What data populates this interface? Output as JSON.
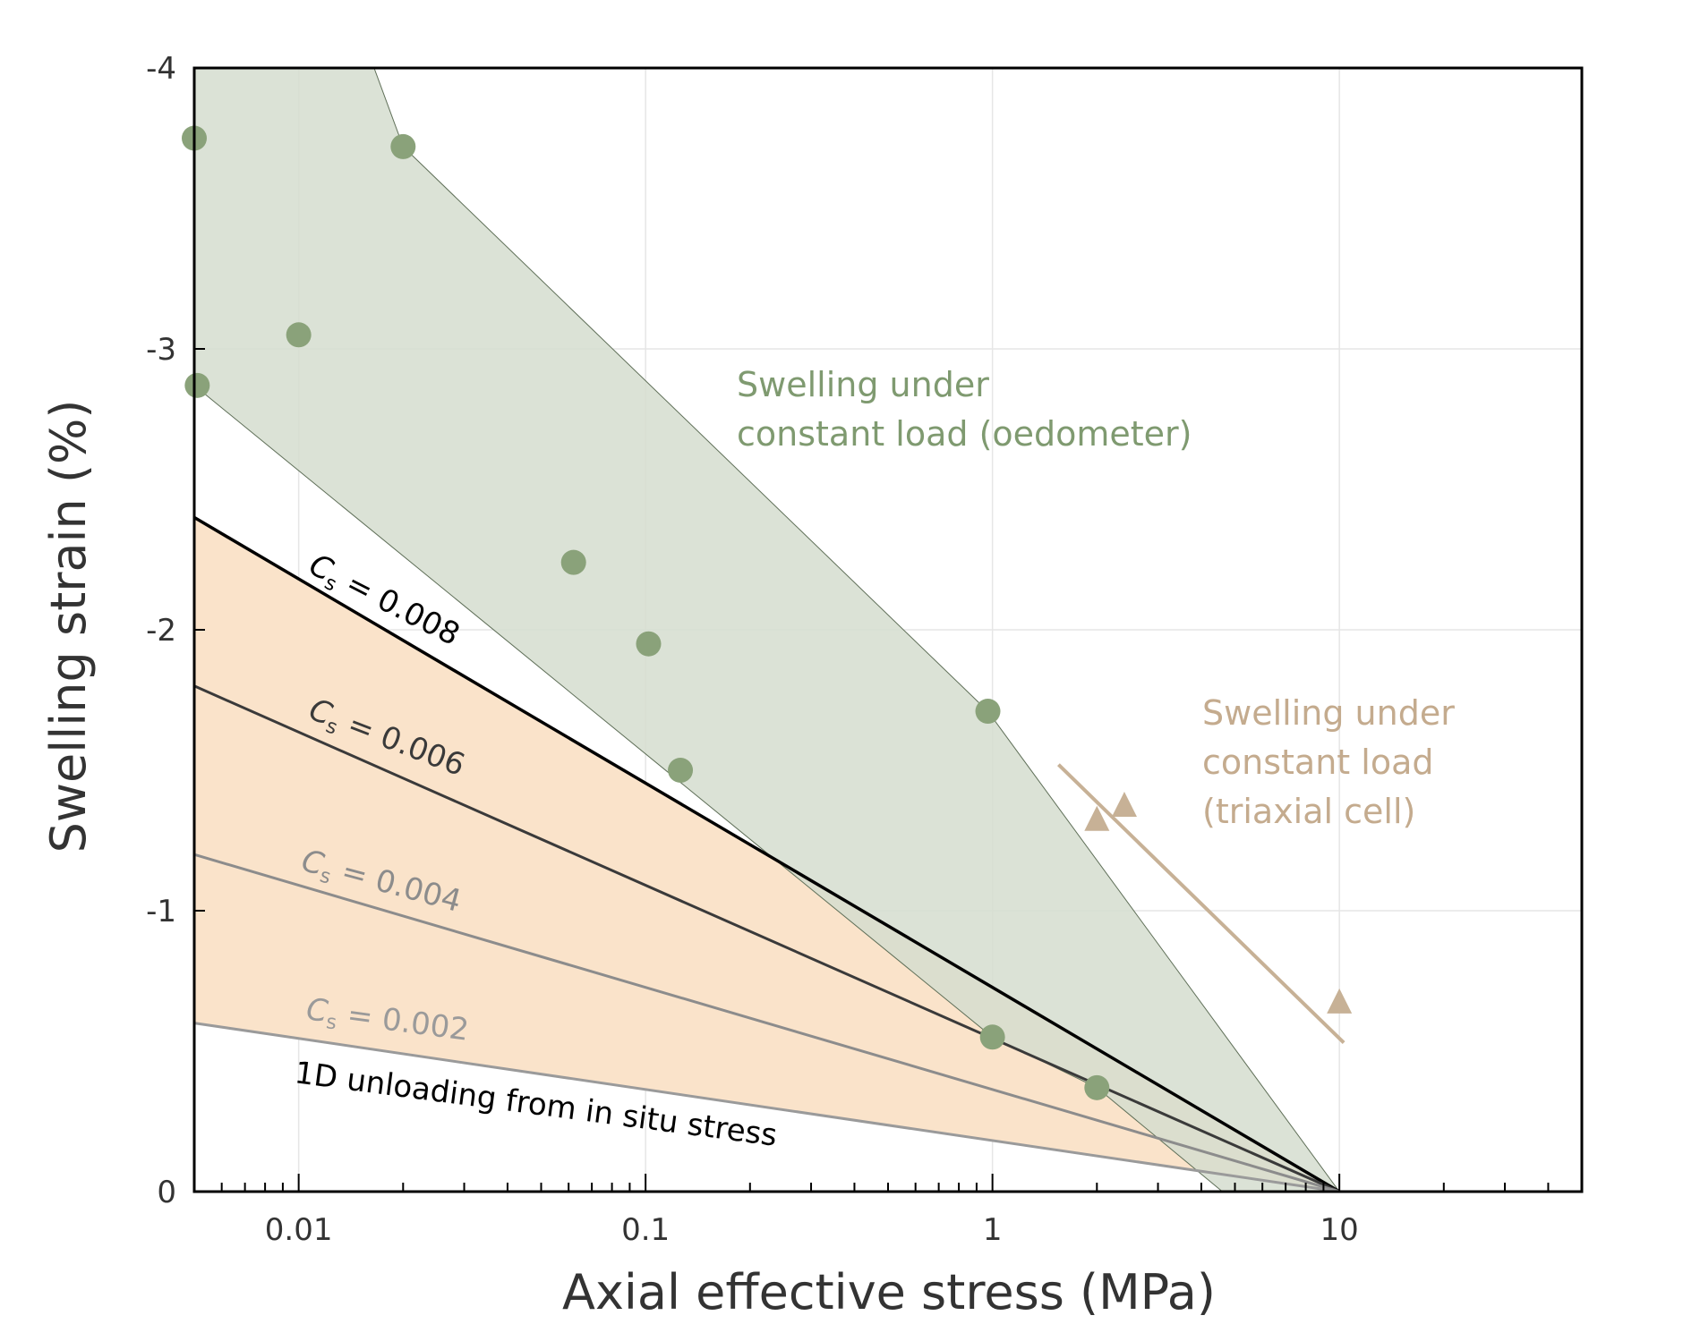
{
  "chart_data": {
    "type": "scatter",
    "title": "",
    "xlabel": "Axial effective stress (MPa)",
    "ylabel": "Swelling strain (%)",
    "xscale": "log",
    "xlim": [
      0.005,
      50
    ],
    "ylim": [
      0,
      -4
    ],
    "xticks": [
      {
        "value": 0.01,
        "label": "0.01"
      },
      {
        "value": 0.1,
        "label": "0.1"
      },
      {
        "value": 1,
        "label": "1"
      },
      {
        "value": 10,
        "label": "10"
      }
    ],
    "yticks": [
      {
        "value": 0,
        "label": "0"
      },
      {
        "value": -1,
        "label": "-1"
      },
      {
        "value": -2,
        "label": "-2"
      },
      {
        "value": -3,
        "label": "-3"
      },
      {
        "value": -4,
        "label": "-4"
      }
    ],
    "grid": true,
    "colors": {
      "oedometer": "#8aa27a",
      "oedometer_fill": "#d5ddcf",
      "triaxial": "#c7b196",
      "cs_band_fill": "#fae3ca",
      "cs_0008": "#000000",
      "cs_0006": "#3a3a3a",
      "cs_0004": "#8c8c8c",
      "cs_0002": "#9a9a9a"
    },
    "series": [
      {
        "name": "Swelling under constant load (oedometer)",
        "kind": "points",
        "marker": "circle",
        "points": [
          {
            "x": 0.005,
            "y": -3.75
          },
          {
            "x": 0.0051,
            "y": -2.87
          },
          {
            "x": 0.01,
            "y": -3.05
          },
          {
            "x": 0.02,
            "y": -3.72
          },
          {
            "x": 0.062,
            "y": -2.24
          },
          {
            "x": 0.102,
            "y": -1.95
          },
          {
            "x": 0.126,
            "y": -1.5
          },
          {
            "x": 0.97,
            "y": -1.71
          },
          {
            "x": 1.0,
            "y": -0.55
          },
          {
            "x": 2.0,
            "y": -0.37
          }
        ]
      },
      {
        "name": "Swelling under constant load (triaxial cell)",
        "kind": "points",
        "marker": "triangle",
        "points": [
          {
            "x": 2.0,
            "y": -1.32
          },
          {
            "x": 2.4,
            "y": -1.37
          },
          {
            "x": 10.0,
            "y": -0.67
          }
        ]
      },
      {
        "name": "triaxial trend",
        "kind": "line",
        "points": [
          {
            "x": 1.55,
            "y": -1.52
          },
          {
            "x": 10.3,
            "y": -0.53
          }
        ]
      },
      {
        "name": "Cs = 0.008",
        "kind": "line",
        "points": [
          {
            "x": 0.005,
            "y": -2.4
          },
          {
            "x": 10,
            "y": 0
          }
        ]
      },
      {
        "name": "Cs = 0.006",
        "kind": "line",
        "points": [
          {
            "x": 0.005,
            "y": -1.8
          },
          {
            "x": 10,
            "y": 0
          }
        ]
      },
      {
        "name": "Cs = 0.004",
        "kind": "line",
        "points": [
          {
            "x": 0.005,
            "y": -1.2
          },
          {
            "x": 10,
            "y": 0
          }
        ]
      },
      {
        "name": "Cs = 0.002",
        "kind": "line",
        "points": [
          {
            "x": 0.005,
            "y": -0.6
          },
          {
            "x": 10,
            "y": 0
          }
        ]
      }
    ],
    "regions": [
      {
        "name": "oedometer envelope",
        "points": [
          {
            "x": 0.005,
            "y": -4.0
          },
          {
            "x": 0.0165,
            "y": -4.0
          },
          {
            "x": 0.02,
            "y": -3.72
          },
          {
            "x": 0.97,
            "y": -1.71
          },
          {
            "x": 10,
            "y": 0
          },
          {
            "x": 4.6,
            "y": 0
          },
          {
            "x": 2.0,
            "y": -0.37
          },
          {
            "x": 1.0,
            "y": -0.55
          },
          {
            "x": 0.005,
            "y": -2.87
          }
        ]
      },
      {
        "name": "Cs band",
        "points": [
          {
            "x": 0.005,
            "y": -2.4
          },
          {
            "x": 10,
            "y": 0
          },
          {
            "x": 0.005,
            "y": -0.6
          }
        ]
      }
    ],
    "annotations": {
      "oedometer_line1": "Swelling under",
      "oedometer_line2": "constant load (oedometer)",
      "triaxial_line1": "Swelling under",
      "triaxial_line2": "constant load",
      "triaxial_line3": "(triaxial cell)",
      "cs_symbol": "C",
      "cs_sub": "s",
      "cs_0008": " = 0.008",
      "cs_0006": " = 0.006",
      "cs_0004": " = 0.004",
      "cs_0002": " = 0.002",
      "unloading": "1D unloading from in situ stress"
    }
  }
}
